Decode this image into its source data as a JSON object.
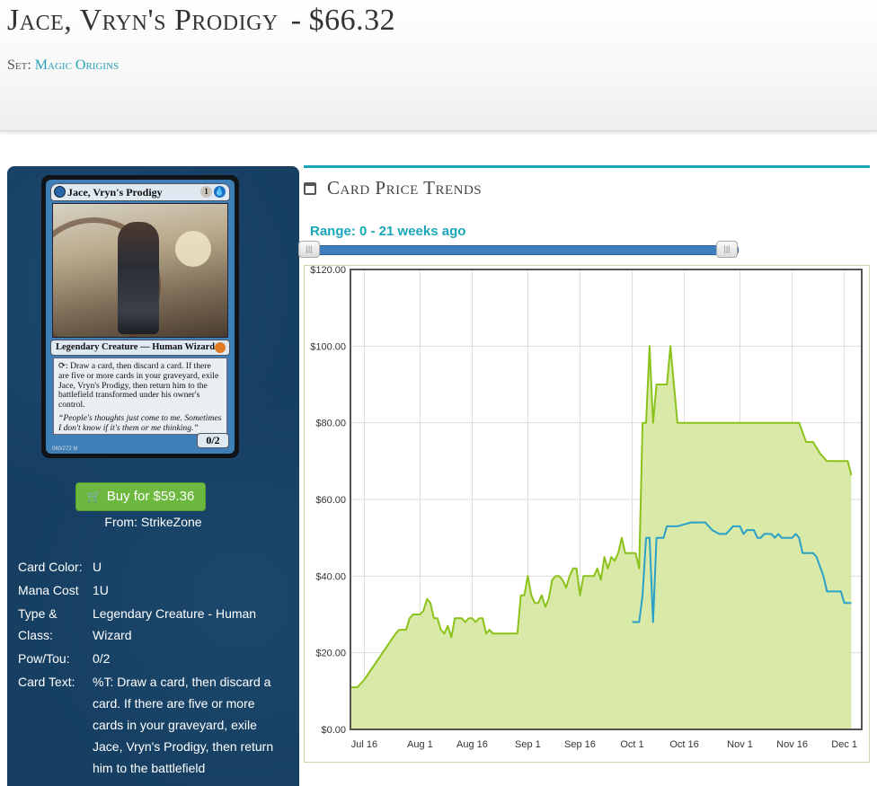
{
  "header": {
    "card_name": "Jace, Vryn's Prodigy",
    "price_separator": "-",
    "price": "$66.32",
    "set_label": "Set:",
    "set_name": "Magic Origins"
  },
  "card_image": {
    "name": "Jace, Vryn's Prodigy",
    "mana": [
      "1",
      "U"
    ],
    "type_line": "Legendary Creature — Human Wizard",
    "rules_text": ": Draw a card, then discard a card. If there are five or more cards in your graveyard, exile Jace, Vryn's Prodigy, then return him to the battlefield transformed under his owner's control.",
    "flavor_text": "“People's thoughts just come to me. Sometimes I don't know if it's them or me thinking.”",
    "pt": "0/2",
    "collector": "060/272 M"
  },
  "buy": {
    "label": "Buy for $59.36",
    "from": "From: StrikeZone"
  },
  "details": [
    {
      "label": "Card Color:",
      "value": "U"
    },
    {
      "label": "Mana Cost",
      "value": "1U"
    },
    {
      "label": "Type & Class:",
      "value": "Legendary Creature - Human Wizard"
    },
    {
      "label": "Pow/Tou:",
      "value": "0/2"
    },
    {
      "label": "Card Text:",
      "value": "%T: Draw a card, then discard a card. If there are five or more cards in your graveyard, exile Jace, Vryn's Prodigy, then return him to the battlefield"
    }
  ],
  "trends": {
    "heading": "Card Price Trends",
    "range_label": "Range: 0 - 21 weeks ago",
    "handle_glyph": "|||"
  },
  "colors": {
    "accent_teal": "#1aa6b9",
    "sidebar_navy": "#163f62",
    "buy_green": "#6db83e",
    "series_green": "#8cc21c",
    "series_fill": "#d6e8a3",
    "series_blue": "#2aa1c8"
  },
  "chart_data": {
    "type": "area",
    "x_ticks": [
      {
        "label": "Jul 16",
        "day": 0
      },
      {
        "label": "Aug 1",
        "day": 16
      },
      {
        "label": "Aug 16",
        "day": 31
      },
      {
        "label": "Sep 1",
        "day": 47
      },
      {
        "label": "Sep 16",
        "day": 62
      },
      {
        "label": "Oct 1",
        "day": 77
      },
      {
        "label": "Oct 16",
        "day": 92
      },
      {
        "label": "Nov 1",
        "day": 108
      },
      {
        "label": "Nov 16",
        "day": 123
      },
      {
        "label": "Dec 1",
        "day": 138
      }
    ],
    "y_ticks": [
      "$0.00",
      "$20.00",
      "$40.00",
      "$60.00",
      "$80.00",
      "$100.00",
      "$120.00"
    ],
    "ylim": [
      0,
      120
    ],
    "xlim": [
      -4,
      143
    ],
    "grid": true,
    "series": [
      {
        "points": [
          [
            -4,
            11
          ],
          [
            -2,
            11
          ],
          [
            0,
            13
          ],
          [
            3,
            17
          ],
          [
            6,
            21
          ],
          [
            9,
            25
          ],
          [
            10,
            26
          ],
          [
            11,
            26
          ],
          [
            12,
            26
          ],
          [
            13,
            29
          ],
          [
            14,
            30
          ],
          [
            16,
            30
          ],
          [
            17,
            31
          ],
          [
            18,
            34
          ],
          [
            19,
            33
          ],
          [
            20,
            29
          ],
          [
            21,
            29
          ],
          [
            22,
            26
          ],
          [
            23,
            25
          ],
          [
            24,
            27
          ],
          [
            25,
            24
          ],
          [
            26,
            29
          ],
          [
            27,
            29
          ],
          [
            28,
            29
          ],
          [
            29,
            28
          ],
          [
            30,
            29
          ],
          [
            31,
            29
          ],
          [
            32,
            28
          ],
          [
            33,
            29
          ],
          [
            34,
            29
          ],
          [
            35,
            25
          ],
          [
            36,
            26
          ],
          [
            37,
            25
          ],
          [
            38,
            25
          ],
          [
            40,
            25
          ],
          [
            42,
            25
          ],
          [
            43,
            25
          ],
          [
            44,
            25
          ],
          [
            45,
            35
          ],
          [
            46,
            35
          ],
          [
            47,
            40
          ],
          [
            48,
            35
          ],
          [
            49,
            33
          ],
          [
            50,
            33
          ],
          [
            51,
            35
          ],
          [
            52,
            32
          ],
          [
            53,
            34
          ],
          [
            54,
            39
          ],
          [
            55,
            40
          ],
          [
            56,
            40
          ],
          [
            57,
            39
          ],
          [
            58,
            37
          ],
          [
            59,
            40
          ],
          [
            60,
            42
          ],
          [
            61,
            42
          ],
          [
            62,
            35
          ],
          [
            63,
            40
          ],
          [
            64,
            40
          ],
          [
            65,
            40
          ],
          [
            66,
            40
          ],
          [
            67,
            42
          ],
          [
            68,
            39
          ],
          [
            69,
            45
          ],
          [
            70,
            42
          ],
          [
            71,
            45
          ],
          [
            72,
            44
          ],
          [
            73,
            46
          ],
          [
            74,
            50
          ],
          [
            75,
            46
          ],
          [
            76,
            46
          ],
          [
            77,
            46
          ],
          [
            78,
            46
          ],
          [
            79,
            42
          ],
          [
            80,
            80
          ],
          [
            81,
            80
          ],
          [
            82,
            100
          ],
          [
            83,
            80
          ],
          [
            84,
            90
          ],
          [
            85,
            90
          ],
          [
            86,
            90
          ],
          [
            87,
            90
          ],
          [
            88,
            100
          ],
          [
            89,
            90
          ],
          [
            90,
            80
          ],
          [
            92,
            80
          ],
          [
            100,
            80
          ],
          [
            110,
            80
          ],
          [
            115,
            80
          ],
          [
            120,
            80
          ],
          [
            125,
            80
          ],
          [
            127,
            75
          ],
          [
            129,
            75
          ],
          [
            131,
            72
          ],
          [
            133,
            70
          ],
          [
            135,
            70
          ],
          [
            137,
            70
          ],
          [
            139,
            70
          ],
          [
            140,
            66.32
          ]
        ]
      },
      {
        "points": [
          [
            77,
            28
          ],
          [
            78,
            28
          ],
          [
            79,
            28
          ],
          [
            80,
            35
          ],
          [
            81,
            50
          ],
          [
            82,
            50
          ],
          [
            83,
            28
          ],
          [
            84,
            50
          ],
          [
            85,
            50
          ],
          [
            86,
            50
          ],
          [
            87,
            53
          ],
          [
            88,
            53
          ],
          [
            89,
            53
          ],
          [
            90,
            53
          ],
          [
            92,
            53.5
          ],
          [
            94,
            54
          ],
          [
            96,
            54
          ],
          [
            98,
            54
          ],
          [
            100,
            52
          ],
          [
            102,
            51
          ],
          [
            104,
            51
          ],
          [
            106,
            53
          ],
          [
            108,
            53
          ],
          [
            109,
            51
          ],
          [
            110,
            52
          ],
          [
            111,
            52
          ],
          [
            112,
            52
          ],
          [
            113,
            50
          ],
          [
            114,
            50
          ],
          [
            115,
            51
          ],
          [
            116,
            51
          ],
          [
            117,
            51
          ],
          [
            118,
            50
          ],
          [
            119,
            51
          ],
          [
            120,
            50
          ],
          [
            121,
            50
          ],
          [
            122,
            50
          ],
          [
            123,
            50
          ],
          [
            124,
            51
          ],
          [
            125,
            50
          ],
          [
            126,
            46
          ],
          [
            128,
            46
          ],
          [
            129,
            46
          ],
          [
            130,
            45
          ],
          [
            132,
            40
          ],
          [
            133,
            36
          ],
          [
            135,
            36
          ],
          [
            136,
            36
          ],
          [
            137,
            36
          ],
          [
            138,
            33
          ],
          [
            139,
            33
          ],
          [
            140,
            33
          ]
        ]
      }
    ]
  }
}
